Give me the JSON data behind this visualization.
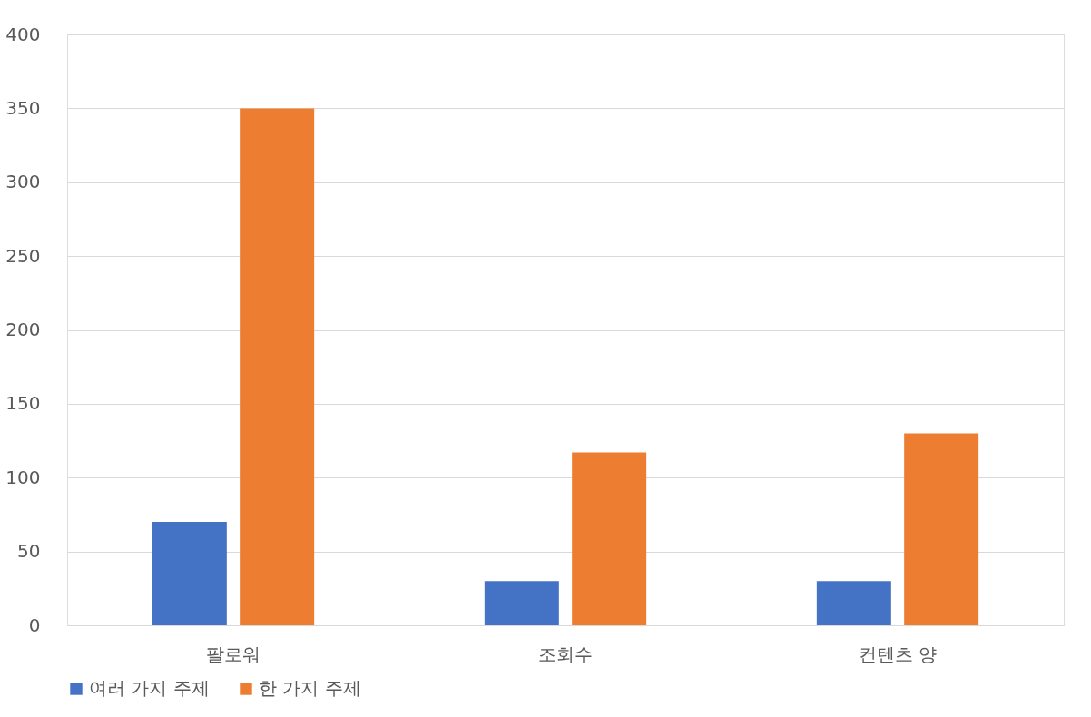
{
  "chart_data": {
    "type": "bar",
    "categories": [
      "팔로워",
      "조회수",
      "컨텐츠 양"
    ],
    "series": [
      {
        "name": "여러 가지 주제",
        "color": "#4472c4",
        "values": [
          70,
          30,
          30
        ]
      },
      {
        "name": "한 가지 주제",
        "color": "#ed7d31",
        "values": [
          350,
          117,
          130
        ]
      }
    ],
    "ylim": [
      0,
      400
    ],
    "yticks": [
      0,
      50,
      100,
      150,
      200,
      250,
      300,
      350,
      400
    ],
    "grid": "y",
    "legend": "bottom"
  }
}
